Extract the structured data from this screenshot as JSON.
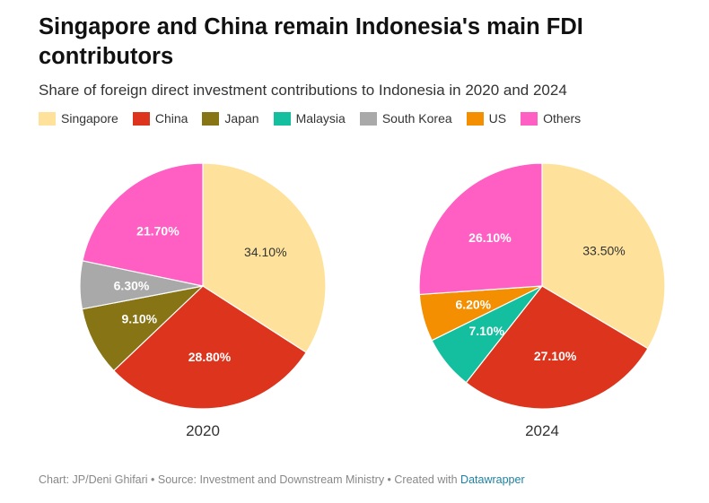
{
  "title": "Singapore and China remain Indonesia's main FDI contributors",
  "subtitle": "Share of foreign direct investment contributions to Indonesia in 2020 and 2024",
  "footer": {
    "text": "Chart: JP/Deni Ghifari • Source: Investment and Downstream Ministry • Created with ",
    "link": "Datawrapper"
  },
  "legend": [
    {
      "name": "Singapore",
      "color": "#fee29b"
    },
    {
      "name": "China",
      "color": "#dc341d"
    },
    {
      "name": "Japan",
      "color": "#877414"
    },
    {
      "name": "Malaysia",
      "color": "#14bf9f"
    },
    {
      "name": "South Korea",
      "color": "#a9a9a9"
    },
    {
      "name": "US",
      "color": "#f38f00"
    },
    {
      "name": "Others",
      "color": "#ff5fc3"
    }
  ],
  "chart_data": [
    {
      "type": "pie",
      "title": "2020",
      "slices": [
        {
          "name": "Singapore",
          "value": 34.1,
          "label": "34.10%",
          "color": "#fee29b",
          "label_color": "#333333"
        },
        {
          "name": "China",
          "value": 28.8,
          "label": "28.80%",
          "color": "#dc341d",
          "label_color": "#ffffff"
        },
        {
          "name": "Japan",
          "value": 9.1,
          "label": "9.10%",
          "color": "#877414",
          "label_color": "#ffffff"
        },
        {
          "name": "South Korea",
          "value": 6.3,
          "label": "6.30%",
          "color": "#a9a9a9",
          "label_color": "#ffffff"
        },
        {
          "name": "Others",
          "value": 21.7,
          "label": "21.70%",
          "color": "#ff5fc3",
          "label_color": "#ffffff"
        }
      ]
    },
    {
      "type": "pie",
      "title": "2024",
      "slices": [
        {
          "name": "Singapore",
          "value": 33.5,
          "label": "33.50%",
          "color": "#fee29b",
          "label_color": "#333333"
        },
        {
          "name": "China",
          "value": 27.1,
          "label": "27.10%",
          "color": "#dc341d",
          "label_color": "#ffffff"
        },
        {
          "name": "Malaysia",
          "value": 7.1,
          "label": "7.10%",
          "color": "#14bf9f",
          "label_color": "#ffffff"
        },
        {
          "name": "US",
          "value": 6.2,
          "label": "6.20%",
          "color": "#f38f00",
          "label_color": "#ffffff"
        },
        {
          "name": "Others",
          "value": 26.1,
          "label": "26.10%",
          "color": "#ff5fc3",
          "label_color": "#ffffff"
        }
      ]
    }
  ]
}
